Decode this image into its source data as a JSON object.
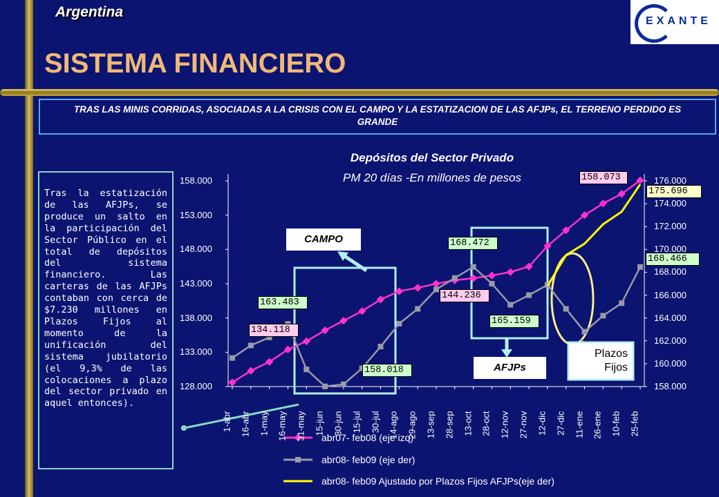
{
  "header": {
    "country": "Argentina",
    "title": "SISTEMA FINANCIERO",
    "logo_text": "EXANTE"
  },
  "subtitle": "TRAS LAS MINIS CORRIDAS, ASOCIADAS A LA CRISIS CON EL CAMPO Y LA ESTATIZACION DE LAS AFJPs, EL TERRENO PERDIDO ES GRANDE",
  "side_note": "Tras la estatización de las AFJPs, se produce un salto en la participación del Sector Público en el total de depósitos del sistema financiero. Las carteras de las AFJPs contaban con cerca de $7.230 millones en Plazos Fijos al momento de la unificación del sistema jubilatorio (el 9,3% de las colocaciones a plazo del sector privado en aquel entonces).",
  "annotations": {
    "campo": "CAMPO",
    "afjps": "AFJPs",
    "plazos_fijos_line1": "Plazos",
    "plazos_fijos_line2": "Fijos"
  },
  "chart_data": {
    "type": "line",
    "title": "Depósitos del Sector Privado",
    "subtitle": "PM 20 días -En millones de pesos",
    "categories": [
      "1-abr",
      "16-abr",
      "1-may",
      "16-may",
      "31-may",
      "15-jun",
      "30-jun",
      "15-jul",
      "30-jul",
      "14-ago",
      "29-ago",
      "13-sep",
      "28-sep",
      "13-oct",
      "28-oct",
      "12-nov",
      "27-nov",
      "12-dic",
      "27-dic",
      "11-ene",
      "26-ene",
      "10-feb",
      "25-feb"
    ],
    "y_left": {
      "min": 128000,
      "max": 158000,
      "ticks": [
        "128.000",
        "133.000",
        "138.000",
        "143.000",
        "148.000",
        "153.000",
        "158.000"
      ]
    },
    "y_right": {
      "min": 158000,
      "max": 176000,
      "ticks": [
        "158.000",
        "160.000",
        "162.000",
        "164.000",
        "166.000",
        "168.000",
        "170.000",
        "172.000",
        "174.000",
        "176.000"
      ]
    },
    "series": [
      {
        "name": "abr07- feb08 (eje izq)",
        "axis": "left",
        "color": "#ff33cc",
        "values": [
          128600,
          130300,
          131600,
          133400,
          134600,
          136200,
          137600,
          139000,
          140700,
          141900,
          142400,
          143000,
          143500,
          143800,
          144200,
          144700,
          145500,
          148500,
          150800,
          153000,
          154700,
          156100,
          158073
        ]
      },
      {
        "name": "abr08- feb09 (eje der)",
        "axis": "right",
        "color": "#9a9aa8",
        "values": [
          160500,
          161600,
          162300,
          163483,
          159500,
          158018,
          158200,
          159600,
          161500,
          163500,
          164800,
          166500,
          167500,
          168472,
          167000,
          165159,
          166000,
          166900,
          164800,
          162800,
          164200,
          165300,
          168466
        ]
      },
      {
        "name": "abr08- feb09 Ajustado por Plazos Fijos AFJPs(eje der)",
        "axis": "right",
        "color": "#ffff00",
        "values": [
          null,
          null,
          null,
          null,
          null,
          null,
          null,
          null,
          null,
          null,
          null,
          null,
          null,
          null,
          null,
          null,
          null,
          166800,
          169500,
          170500,
          172200,
          173300,
          175696
        ]
      }
    ],
    "data_labels": [
      "163.483",
      "134.118",
      "158.018",
      "168.472",
      "144.236",
      "165.159",
      "158.073",
      "175.696",
      "168.466"
    ],
    "legend_position": "bottom"
  }
}
